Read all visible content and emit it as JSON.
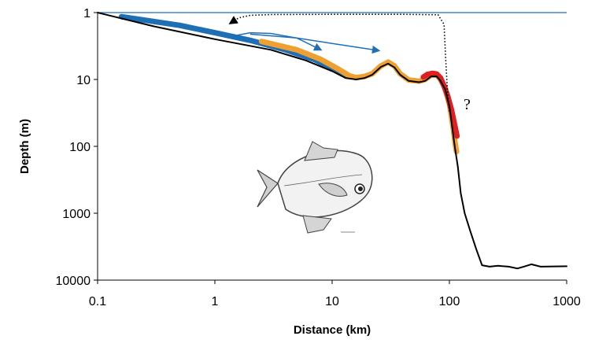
{
  "chart_data": {
    "type": "line",
    "title": "",
    "xlabel": "Distance (km)",
    "ylabel": "Depth (m)",
    "x_scale": "log",
    "y_scale": "log",
    "y_inverted": true,
    "xlim": [
      0.1,
      1000
    ],
    "ylim": [
      1,
      10000
    ],
    "x_ticks": [
      "0.1",
      "1",
      "10",
      "100",
      "1000"
    ],
    "y_ticks": [
      "1",
      "10",
      "100",
      "1000",
      "10000"
    ],
    "grid": false,
    "legend": "none",
    "annotations": [
      {
        "text": "?"
      }
    ],
    "surface_line": {
      "depth": 1,
      "color": "#1f6fb5"
    },
    "series": [
      {
        "role": "seabed-profile",
        "color": "#000000",
        "points": [
          [
            0.1,
            1
          ],
          [
            0.3,
            1.6
          ],
          [
            1,
            2.5
          ],
          [
            3,
            3.6
          ],
          [
            6,
            5.2
          ],
          [
            10,
            7.5
          ],
          [
            13,
            9.5
          ],
          [
            16,
            10
          ],
          [
            19,
            9.5
          ],
          [
            22,
            8.5
          ],
          [
            26,
            6.5
          ],
          [
            30,
            5.8
          ],
          [
            34,
            6.6
          ],
          [
            38,
            8.5
          ],
          [
            45,
            10.5
          ],
          [
            55,
            11
          ],
          [
            62,
            10.5
          ],
          [
            70,
            9
          ],
          [
            78,
            9
          ],
          [
            84,
            10.5
          ],
          [
            92,
            14
          ],
          [
            100,
            25
          ],
          [
            108,
            70
          ],
          [
            112,
            110
          ],
          [
            118,
            200
          ],
          [
            125,
            500
          ],
          [
            135,
            1000
          ],
          [
            150,
            1800
          ],
          [
            170,
            3500
          ],
          [
            190,
            6000
          ],
          [
            220,
            6300
          ],
          [
            260,
            6100
          ],
          [
            320,
            6300
          ],
          [
            380,
            6700
          ],
          [
            430,
            6300
          ],
          [
            500,
            5800
          ],
          [
            600,
            6300
          ],
          [
            1000,
            6200
          ]
        ]
      },
      {
        "role": "habitat-blue",
        "color": "#1f6fb5",
        "points": [
          [
            0.16,
            1.15
          ],
          [
            0.5,
            1.55
          ],
          [
            1,
            2
          ],
          [
            2,
            2.6
          ],
          [
            4,
            3.6
          ],
          [
            7,
            5
          ],
          [
            10,
            6.8
          ],
          [
            13,
            8.6
          ]
        ]
      },
      {
        "role": "habitat-orange",
        "color": "#f0a030",
        "points": [
          [
            2.5,
            2.7
          ],
          [
            5,
            3.6
          ],
          [
            8,
            5
          ],
          [
            11,
            6.8
          ],
          [
            14,
            8.8
          ],
          [
            16,
            9.4
          ],
          [
            19,
            9
          ],
          [
            22,
            8.2
          ],
          [
            26,
            6.3
          ],
          [
            30,
            5.5
          ],
          [
            34,
            6.3
          ],
          [
            38,
            8.2
          ],
          [
            45,
            10.2
          ],
          [
            55,
            10.6
          ],
          [
            62,
            10
          ],
          [
            70,
            8.6
          ],
          [
            78,
            8.6
          ],
          [
            84,
            10
          ],
          [
            92,
            13.5
          ],
          [
            100,
            23
          ],
          [
            108,
            55
          ],
          [
            112,
            90
          ],
          [
            115,
            120
          ]
        ]
      },
      {
        "role": "habitat-red",
        "color": "#e02020",
        "points": [
          [
            60,
            9.2
          ],
          [
            65,
            8.4
          ],
          [
            72,
            8.1
          ],
          [
            78,
            8.3
          ],
          [
            84,
            9.5
          ],
          [
            90,
            12.5
          ],
          [
            97,
            18
          ],
          [
            104,
            28
          ],
          [
            110,
            45
          ],
          [
            116,
            70
          ]
        ]
      }
    ],
    "arrows": [
      {
        "style": "solid",
        "color": "#1f6fb5",
        "points": [
          [
            1.5,
            2.2
          ],
          [
            2,
            2
          ],
          [
            3,
            2.05
          ],
          [
            5,
            2.4
          ],
          [
            8,
            3.6
          ]
        ]
      },
      {
        "style": "solid",
        "color": "#1f6fb5",
        "points": [
          [
            2,
            2.1
          ],
          [
            5,
            2.4
          ],
          [
            10,
            2.9
          ],
          [
            25,
            3.7
          ]
        ]
      },
      {
        "style": "dotted",
        "color": "#000000",
        "points": [
          [
            100,
            30
          ],
          [
            96,
            14
          ],
          [
            93,
            5
          ],
          [
            90,
            1.5
          ],
          [
            80,
            1.08
          ],
          [
            40,
            1.06
          ],
          [
            10,
            1.06
          ],
          [
            3,
            1.07
          ],
          [
            2,
            1.1
          ],
          [
            1.6,
            1.2
          ],
          [
            1.35,
            1.45
          ]
        ]
      }
    ],
    "illustration": "fish-drawing"
  }
}
